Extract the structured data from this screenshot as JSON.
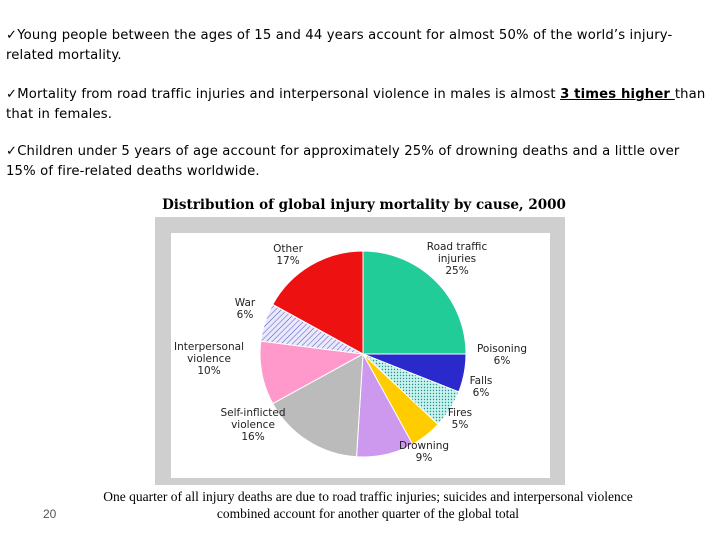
{
  "bullets": [
    {
      "mark": "✓",
      "text": "Young people between the ages of 15 and 44 years account for almost 50% of the world’s injury-related mortality."
    },
    {
      "mark": "✓",
      "before": "Mortality from road traffic injuries and interpersonal violence in males is almost ",
      "emph": "3 times higher ",
      "after": "than that in females."
    },
    {
      "mark": "✓",
      "text": "Children under 5 years of age account for approximately 25% of drowning deaths and a little over 15% of fire-related deaths worldwide."
    }
  ],
  "chart_data": {
    "type": "pie",
    "title": "Distribution of global injury mortality by cause, 2000",
    "slices": [
      {
        "name": "Road traffic injuries",
        "label_lines": [
          "Road traffic",
          "injuries"
        ],
        "pct_label": "25%",
        "value": 25,
        "color": "#22cc99"
      },
      {
        "name": "Poisoning",
        "label_lines": [
          "Poisoning"
        ],
        "pct_label": "6%",
        "value": 6,
        "color": "#2a2acc"
      },
      {
        "name": "Falls",
        "label_lines": [
          "Falls"
        ],
        "pct_label": "6%",
        "value": 6,
        "color": "#b8f0ec",
        "pattern": "dots"
      },
      {
        "name": "Fires",
        "label_lines": [
          "Fires"
        ],
        "pct_label": "5%",
        "value": 5,
        "color": "#ffcc00"
      },
      {
        "name": "Drowning",
        "label_lines": [
          "Drowning"
        ],
        "pct_label": "9%",
        "value": 9,
        "color": "#cc99ee"
      },
      {
        "name": "Self-inflicted violence",
        "label_lines": [
          "Self-inflicted",
          "violence"
        ],
        "pct_label": "16%",
        "value": 16,
        "color": "#bbbbbb"
      },
      {
        "name": "Interpersonal violence",
        "label_lines": [
          "Interpersonal",
          "violence"
        ],
        "pct_label": "10%",
        "value": 10,
        "color": "#ff99cc"
      },
      {
        "name": "War",
        "label_lines": [
          "War"
        ],
        "pct_label": "6%",
        "value": 6,
        "color": "#ddddff",
        "pattern": "hatch"
      },
      {
        "name": "Other",
        "label_lines": [
          "Other"
        ],
        "pct_label": "17%",
        "value": 17,
        "color": "#ee1111"
      }
    ]
  },
  "caption": "One quarter of all injury deaths are due to road traffic injuries; suicides and interpersonal violence combined account for another quarter of the global total",
  "page_number": "20"
}
